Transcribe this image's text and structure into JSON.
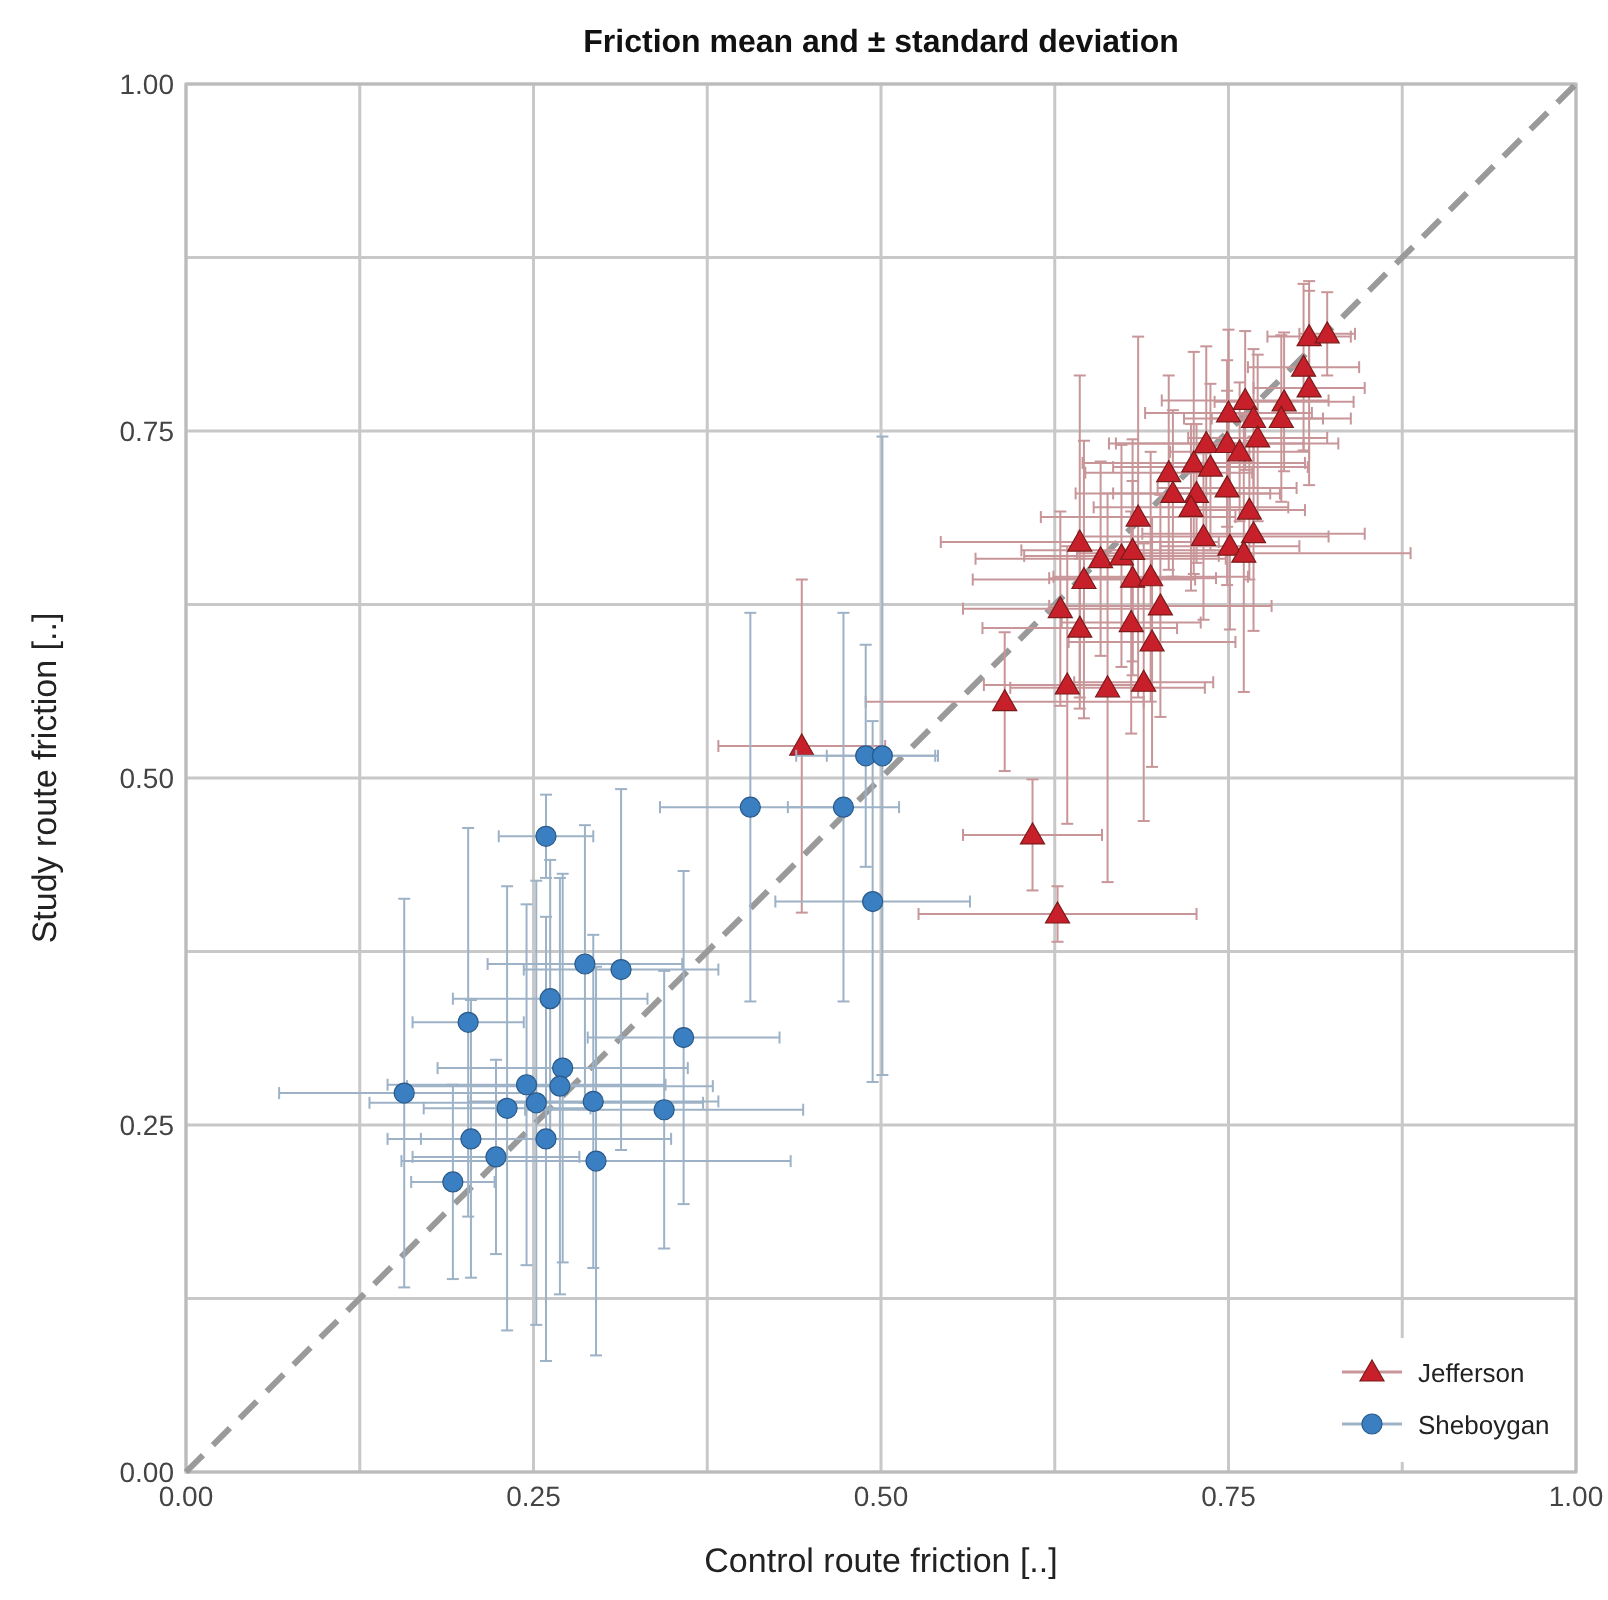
{
  "chart_data": {
    "type": "scatter",
    "title": "Friction mean and ± standard deviation",
    "xlabel": "Control route friction [..]",
    "ylabel": "Study route friction [..]",
    "xlim": [
      0,
      1
    ],
    "ylim": [
      0,
      1
    ],
    "xticks": [
      {
        "value": 0,
        "label": "0.00"
      },
      {
        "value": 0.125,
        "label": null
      },
      {
        "value": 0.25,
        "label": "0.25"
      },
      {
        "value": 0.375,
        "label": null
      },
      {
        "value": 0.5,
        "label": "0.50"
      },
      {
        "value": 0.625,
        "label": null
      },
      {
        "value": 0.75,
        "label": "0.75"
      },
      {
        "value": 0.875,
        "label": null
      },
      {
        "value": 1,
        "label": "1.00"
      }
    ],
    "yticks": [
      {
        "value": 0,
        "label": "0.00"
      },
      {
        "value": 0.125,
        "label": null
      },
      {
        "value": 0.25,
        "label": "0.25"
      },
      {
        "value": 0.375,
        "label": null
      },
      {
        "value": 0.5,
        "label": "0.50"
      },
      {
        "value": 0.625,
        "label": null
      },
      {
        "value": 0.75,
        "label": "0.75"
      },
      {
        "value": 0.875,
        "label": null
      },
      {
        "value": 1,
        "label": "1.00"
      }
    ],
    "grid": true,
    "legend": "bottom right",
    "series": [
      {
        "type": "line",
        "x": [
          0,
          1
        ],
        "values": [
          0,
          1
        ],
        "color": "#9a9a9a",
        "line_style": "dashed"
      },
      {
        "name": "Jefferson",
        "color": "#c8202a",
        "marker": "triangle",
        "x": [
          0.808,
          0.821,
          0.804,
          0.808,
          0.79,
          0.788,
          0.762,
          0.75,
          0.768,
          0.771,
          0.734,
          0.749,
          0.758,
          0.725,
          0.737,
          0.707,
          0.71,
          0.727,
          0.749,
          0.723,
          0.765,
          0.685,
          0.732,
          0.768,
          0.643,
          0.751,
          0.761,
          0.658,
          0.673,
          0.681,
          0.681,
          0.694,
          0.646,
          0.629,
          0.701,
          0.643,
          0.68,
          0.695,
          0.634,
          0.663,
          0.689,
          0.589,
          0.609,
          0.627,
          0.443
        ],
        "values": [
          0.818,
          0.82,
          0.796,
          0.781,
          0.771,
          0.759,
          0.772,
          0.763,
          0.759,
          0.745,
          0.741,
          0.741,
          0.735,
          0.727,
          0.724,
          0.72,
          0.705,
          0.705,
          0.709,
          0.695,
          0.693,
          0.688,
          0.674,
          0.676,
          0.67,
          0.667,
          0.662,
          0.658,
          0.66,
          0.664,
          0.644,
          0.645,
          0.643,
          0.622,
          0.624,
          0.608,
          0.612,
          0.598,
          0.567,
          0.565,
          0.569,
          0.555,
          0.459,
          0.402,
          0.523
        ],
        "errors": [
          0.04,
          0.03,
          0.06,
          0.07,
          0.05,
          0.06,
          0.05,
          0.06,
          0.05,
          0.06,
          0.07,
          0.06,
          0.05,
          0.08,
          0.06,
          0.07,
          0.06,
          0.05,
          0.07,
          0.06,
          0.05,
          0.13,
          0.06,
          0.07,
          0.12,
          0.06,
          0.1,
          0.07,
          0.08,
          0.08,
          0.07,
          0.09,
          0.1,
          0.07,
          0.08,
          0.05,
          0.08,
          0.09,
          0.1,
          0.14,
          0.1,
          0.05,
          0.04,
          0.02,
          0.12
        ],
        "xerrors": [
          0.03,
          0.02,
          0.04,
          0.04,
          0.05,
          0.05,
          0.06,
          0.06,
          0.05,
          0.05,
          0.07,
          0.08,
          0.05,
          0.08,
          0.07,
          0.06,
          0.07,
          0.06,
          0.05,
          0.07,
          0.04,
          0.07,
          0.09,
          0.08,
          0.1,
          0.05,
          0.12,
          0.09,
          0.07,
          0.08,
          0.06,
          0.07,
          0.08,
          0.07,
          0.08,
          0.07,
          0.05,
          0.06,
          0.06,
          0.07,
          0.05,
          0.1,
          0.05,
          0.1,
          0.06
        ]
      },
      {
        "name": "Sheboygan",
        "color": "#3a7fc1",
        "marker": "circle",
        "x": [
          0.259,
          0.406,
          0.473,
          0.494,
          0.287,
          0.313,
          0.262,
          0.203,
          0.358,
          0.157,
          0.245,
          0.271,
          0.269,
          0.252,
          0.231,
          0.293,
          0.344,
          0.205,
          0.259,
          0.223,
          0.295,
          0.192,
          0.489,
          0.501
        ],
        "values": [
          0.458,
          0.479,
          0.479,
          0.411,
          0.366,
          0.362,
          0.341,
          0.324,
          0.313,
          0.273,
          0.279,
          0.291,
          0.278,
          0.266,
          0.262,
          0.267,
          0.261,
          0.24,
          0.24,
          0.227,
          0.224,
          0.209,
          0.516,
          0.516
        ],
        "errors": [
          0.03,
          0.14,
          0.14,
          0.13,
          0.1,
          0.13,
          0.1,
          0.14,
          0.12,
          0.14,
          0.13,
          0.14,
          0.15,
          0.16,
          0.16,
          0.12,
          0.1,
          0.1,
          0.16,
          0.07,
          0.14,
          0.07,
          0.08,
          0.23
        ],
        "xerrors": [
          0.034,
          0.065,
          0.04,
          0.07,
          0.07,
          0.07,
          0.07,
          0.04,
          0.069,
          0.09,
          0.1,
          0.09,
          0.11,
          0.12,
          0.06,
          0.09,
          0.1,
          0.06,
          0.09,
          0.06,
          0.14,
          0.03,
          0.05,
          0.04
        ]
      }
    ]
  }
}
